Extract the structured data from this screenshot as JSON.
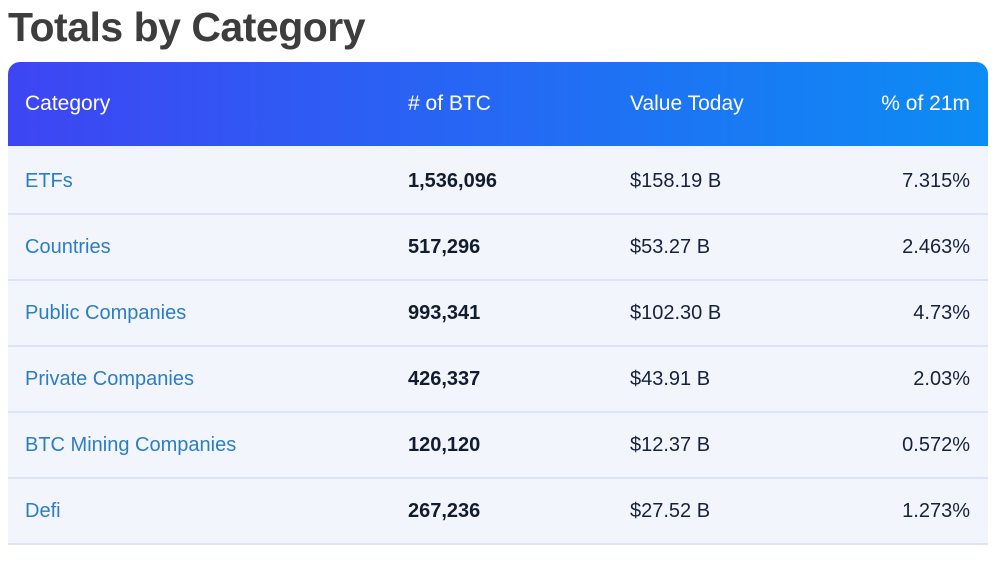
{
  "page": {
    "title": "Totals by Category"
  },
  "colors": {
    "header-grad-start": "#3e45f3",
    "header-grad-end": "#0c8cf4",
    "row-bg": "#f3f5fc",
    "row-separator": "#dee4f8",
    "link": "#2b7dc6",
    "text-dark": "#16213c",
    "title": "#3d3d3d"
  },
  "table": {
    "columns": [
      {
        "label": "Category",
        "align": "left"
      },
      {
        "label": "# of BTC",
        "align": "left"
      },
      {
        "label": "Value Today",
        "align": "left"
      },
      {
        "label": "% of 21m",
        "align": "right"
      }
    ],
    "rows": [
      {
        "category": "ETFs",
        "btc": "1,536,096",
        "value": "$158.19 B",
        "pct": "7.315%"
      },
      {
        "category": "Countries",
        "btc": "517,296",
        "value": "$53.27 B",
        "pct": "2.463%"
      },
      {
        "category": "Public Companies",
        "btc": "993,341",
        "value": "$102.30 B",
        "pct": "4.73%"
      },
      {
        "category": "Private Companies",
        "btc": "426,337",
        "value": "$43.91 B",
        "pct": "2.03%"
      },
      {
        "category": "BTC Mining Companies",
        "btc": "120,120",
        "value": "$12.37 B",
        "pct": "0.572%"
      },
      {
        "category": "Defi",
        "btc": "267,236",
        "value": "$27.52 B",
        "pct": "1.273%"
      }
    ]
  }
}
